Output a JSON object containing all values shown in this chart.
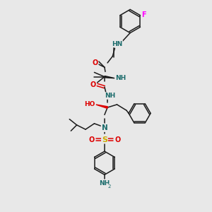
{
  "background_color": "#e8e8e8",
  "figure_size": [
    3.0,
    3.0
  ],
  "dpi": 100,
  "F_color": "#ff00ff",
  "N_color": "#1a6b6b",
  "O_color": "#dd0000",
  "S_color": "#ccaa00",
  "NH2_color": "#1a6b6b",
  "bond_color": "#1a1a1a",
  "xlim": [
    30,
    270
  ],
  "ylim": [
    5,
    295
  ]
}
